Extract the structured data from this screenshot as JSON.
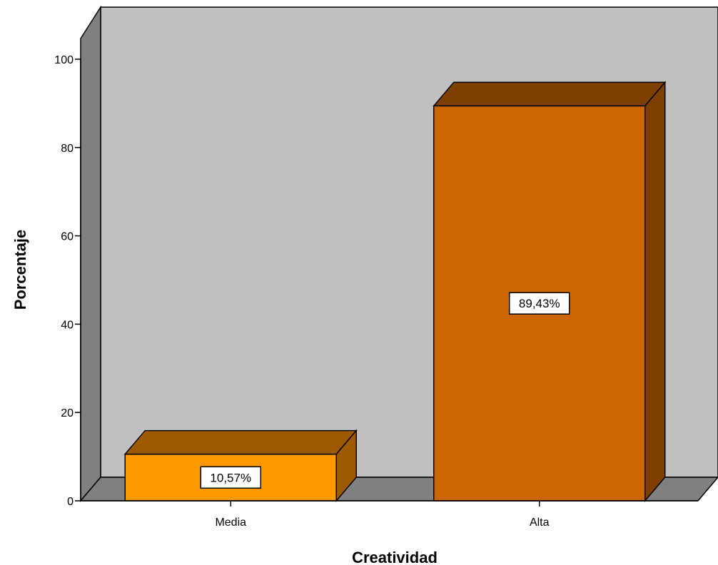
{
  "chart_data": {
    "type": "bar",
    "style": "3d",
    "categories": [
      "Media",
      "Alta"
    ],
    "values": [
      10.57,
      89.43
    ],
    "data_labels": [
      "10,57%",
      "89,43%"
    ],
    "xlabel": "Creatividad",
    "ylabel": "Porcentaje",
    "ylim": [
      0,
      100
    ],
    "yticks": [
      0,
      20,
      40,
      60,
      80,
      100
    ],
    "grid": false,
    "legend": "none",
    "colors": {
      "bars": [
        "#FF9900",
        "#CC6600"
      ],
      "bar_tops": [
        "#9E5A00",
        "#7F3F00"
      ],
      "bar_sides": [
        "#9E5A00",
        "#7F3F00"
      ],
      "back_wall": "#C0C0C0",
      "side_wall": "#808080",
      "floor": "#808080",
      "label_box": "#FFFFFF"
    }
  }
}
